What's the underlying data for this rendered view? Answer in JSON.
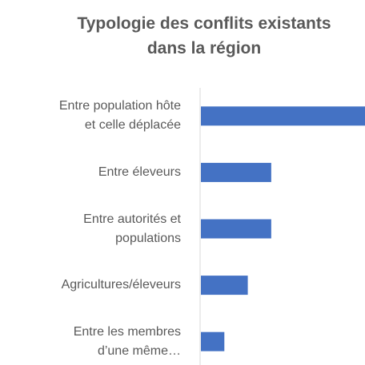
{
  "chart_data": {
    "type": "bar",
    "orientation": "horizontal",
    "title": "Typologie des conflits existants\ndans la  région",
    "categories": [
      "Entre population hôte\net celle déplacée",
      "Entre éleveurs",
      "Entre autorités et\npopulations",
      "Agricultures/éleveurs",
      "Entre les membres\nd’une même…"
    ],
    "values": [
      7,
      3,
      3,
      2,
      1
    ],
    "color": "#4472c4"
  }
}
